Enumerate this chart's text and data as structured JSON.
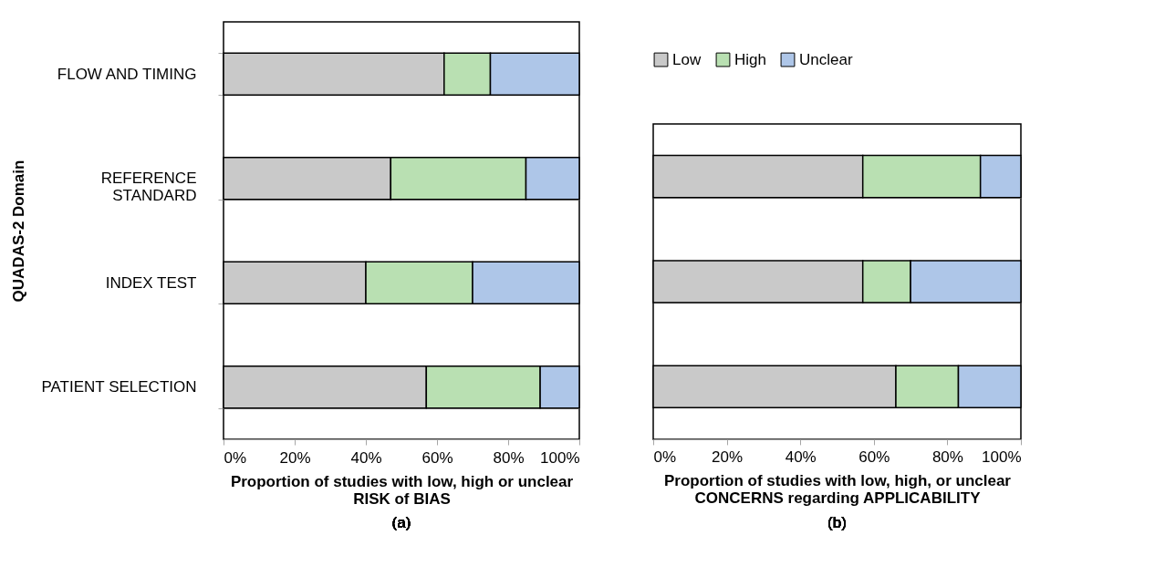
{
  "chart_data": [
    {
      "type": "bar",
      "orientation": "horizontal",
      "stacked": true,
      "categories": [
        "FLOW AND TIMING",
        "REFERENCE STANDARD",
        "INDEX TEST",
        "PATIENT SELECTION"
      ],
      "series": [
        {
          "name": "Low",
          "color": "#c9c9c9",
          "values": [
            62,
            47,
            40,
            57
          ]
        },
        {
          "name": "High",
          "color": "#b9e0b2",
          "values": [
            13,
            38,
            30,
            32
          ]
        },
        {
          "name": "Unclear",
          "color": "#aec6e8",
          "values": [
            25,
            15,
            30,
            11
          ]
        }
      ],
      "xlim": [
        0,
        100
      ],
      "xticks": [
        {
          "value": 0,
          "label": "0%"
        },
        {
          "value": 20,
          "label": "20%"
        },
        {
          "value": 40,
          "label": "40%"
        },
        {
          "value": 60,
          "label": "60%"
        },
        {
          "value": 80,
          "label": "80%"
        },
        {
          "value": 100,
          "label": "100%"
        }
      ],
      "xlabel": "Proportion of studies with low, high or unclear RISK of BIAS",
      "ylabel": "QUADAS-2 Domain",
      "grid": "y",
      "legend": "top right",
      "annotations": [
        "(a)"
      ]
    },
    {
      "type": "bar",
      "orientation": "horizontal",
      "stacked": true,
      "categories": [
        null,
        null,
        null
      ],
      "series": [
        {
          "color": "#c9c9c9",
          "values": [
            57,
            57,
            66
          ]
        },
        {
          "color": "#b9e0b2",
          "values": [
            32,
            13,
            17
          ]
        },
        {
          "color": "#aec6e8",
          "values": [
            11,
            30,
            17
          ]
        }
      ],
      "xlim": [
        0,
        100
      ],
      "xticks": [
        {
          "value": 0,
          "label": "0%"
        },
        {
          "value": 20,
          "label": "20%"
        },
        {
          "value": 40,
          "label": "40%"
        },
        {
          "value": 60,
          "label": "60%"
        },
        {
          "value": 80,
          "label": "80%"
        },
        {
          "value": 100,
          "label": "100%"
        }
      ],
      "xlabel": "Proportion of studies with low, high, or unclear CONCERNS regarding APPLICABILITY",
      "grid": "y",
      "tick_labels": "x",
      "annotations": [
        "(b)"
      ]
    }
  ]
}
